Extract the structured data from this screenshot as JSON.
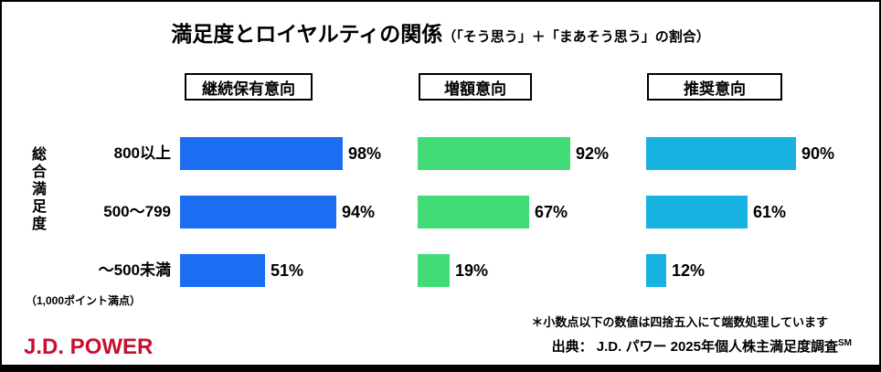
{
  "title": {
    "main": "満足度とロイヤルティの関係",
    "sub": "（「そう思う」＋「まあそう思う」の割合）"
  },
  "y_axis": {
    "label": "総合満足度",
    "note": "（1,000ポイント満点）",
    "categories": [
      "800以上",
      "500～799",
      "～500未満"
    ]
  },
  "chart_data": {
    "type": "bar",
    "orientation": "horizontal",
    "categories": [
      "800以上",
      "500～799",
      "～500未満"
    ],
    "series": [
      {
        "name": "継続保有意向",
        "color": "#1b6df2",
        "values": [
          98,
          94,
          51
        ]
      },
      {
        "name": "増額意向",
        "color": "#41dc78",
        "values": [
          92,
          67,
          19
        ]
      },
      {
        "name": "推奨意向",
        "color": "#17b2e0",
        "values": [
          90,
          61,
          12
        ]
      }
    ],
    "xlim": [
      0,
      100
    ],
    "value_suffix": "%",
    "grid": false,
    "legend_position": "top-boxes"
  },
  "footnotes": {
    "rounding": "＊小数点以下の数値は四捨五入にて端数処理しています",
    "source_label": "出典：",
    "source": " J.D. パワー 2025年個人株主満足度調査",
    "source_superscript": "SM"
  },
  "logo": "J.D. POWER"
}
